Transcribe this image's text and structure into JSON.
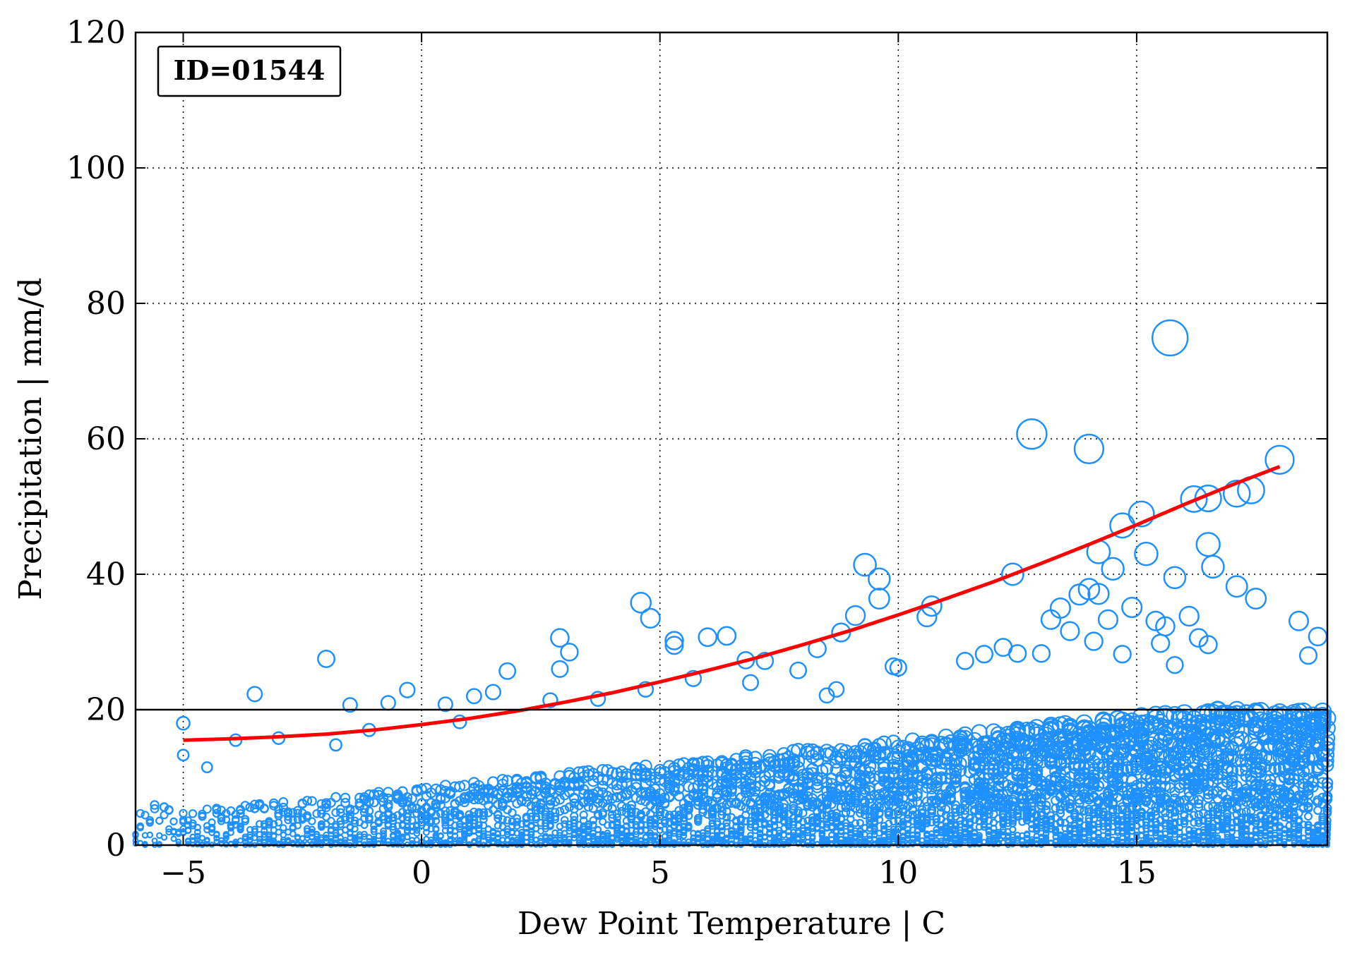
{
  "chart_data": {
    "type": "scatter",
    "xlabel": "Dew Point Temperature | C",
    "ylabel": "Precipitation | mm/d",
    "xlim": [
      -6,
      19
    ],
    "ylim": [
      0,
      120
    ],
    "xticks": [
      -5,
      0,
      5,
      10,
      15
    ],
    "xtick_labels": [
      "−5",
      "0",
      "5",
      "10",
      "15"
    ],
    "yticks": [
      0,
      20,
      40,
      60,
      80,
      100,
      120
    ],
    "ytick_labels": [
      "0",
      "20",
      "40",
      "60",
      "80",
      "100",
      "120"
    ],
    "grid": true,
    "reference_line_y": 20,
    "annotation": "ID=01544",
    "colors": {
      "points": "#1e90ff",
      "fit": "#ff0000",
      "reference": "#000000",
      "grid": "#000000"
    },
    "series": [
      {
        "kind": "scatter",
        "marker": "open-circle",
        "points": [
          [
            -5,
            18.0
          ],
          [
            -2,
            27.5
          ],
          [
            -3.5,
            22.3
          ],
          [
            -1.5,
            20.7
          ],
          [
            -0.3,
            22.9
          ],
          [
            0.5,
            20.8
          ],
          [
            -0.7,
            21.0
          ],
          [
            1.1,
            22.0
          ],
          [
            1.5,
            22.6
          ],
          [
            1.8,
            25.7
          ],
          [
            2.9,
            30.6
          ],
          [
            2.9,
            26.0
          ],
          [
            3.1,
            28.5
          ],
          [
            2.7,
            21.4
          ],
          [
            4.6,
            35.8
          ],
          [
            4.8,
            33.5
          ],
          [
            5.3,
            30.2
          ],
          [
            5.3,
            29.5
          ],
          [
            6,
            30.7
          ],
          [
            6.4,
            30.9
          ],
          [
            6.8,
            27.3
          ],
          [
            7.2,
            27.2
          ],
          [
            7.9,
            25.8
          ],
          [
            8.3,
            29.0
          ],
          [
            8.8,
            31.4
          ],
          [
            9.3,
            41.4
          ],
          [
            9.6,
            39.3
          ],
          [
            9.6,
            36.4
          ],
          [
            9.1,
            33.9
          ],
          [
            10.6,
            33.7
          ],
          [
            10.7,
            35.3
          ],
          [
            11.4,
            27.2
          ],
          [
            12.4,
            40.0
          ],
          [
            12.8,
            60.7
          ],
          [
            13.0,
            28.3
          ],
          [
            13.2,
            33.3
          ],
          [
            13.4,
            35.0
          ],
          [
            13.6,
            31.6
          ],
          [
            13.8,
            37.0
          ],
          [
            14.0,
            58.5
          ],
          [
            14.0,
            37.8
          ],
          [
            14.2,
            43.3
          ],
          [
            14.2,
            37.1
          ],
          [
            14.4,
            33.3
          ],
          [
            14.5,
            40.8
          ],
          [
            14.7,
            47.2
          ],
          [
            14.9,
            35.1
          ],
          [
            15.1,
            48.9
          ],
          [
            15.2,
            43.0
          ],
          [
            15.7,
            74.9
          ],
          [
            15.4,
            33.1
          ],
          [
            15.6,
            32.3
          ],
          [
            15.8,
            39.5
          ],
          [
            16.1,
            33.8
          ],
          [
            16.2,
            51.1
          ],
          [
            16.5,
            51.2
          ],
          [
            16.5,
            44.4
          ],
          [
            16.6,
            41.1
          ],
          [
            17.1,
            51.9
          ],
          [
            17.4,
            52.4
          ],
          [
            17.1,
            38.2
          ],
          [
            17.5,
            36.4
          ],
          [
            18.0,
            56.9
          ],
          [
            18.4,
            33.1
          ],
          [
            18.8,
            30.8
          ],
          [
            18.6,
            28.0
          ],
          [
            16.3,
            30.6
          ],
          [
            16.5,
            29.6
          ],
          [
            15.5,
            29.8
          ],
          [
            15.8,
            26.6
          ],
          [
            14.1,
            30.1
          ],
          [
            14.7,
            28.2
          ],
          [
            12.2,
            29.2
          ],
          [
            12.5,
            28.3
          ],
          [
            11.8,
            28.2
          ],
          [
            9.9,
            26.4
          ],
          [
            10.0,
            26.2
          ],
          [
            8.5,
            22.1
          ],
          [
            8.7,
            23.0
          ],
          [
            6.9,
            24.0
          ],
          [
            5.7,
            24.6
          ],
          [
            4.7,
            23.0
          ],
          [
            3.7,
            21.6
          ],
          [
            0.8,
            18.2
          ],
          [
            -1.8,
            14.8
          ],
          [
            -1.1,
            17.0
          ],
          [
            -3.9,
            15.5
          ],
          [
            -3.0,
            15.8
          ],
          [
            -4.5,
            11.5
          ],
          [
            -5.0,
            13.3
          ]
        ]
      },
      {
        "kind": "line",
        "x": [
          -5,
          -4,
          -3,
          -2,
          -1,
          0,
          1,
          2,
          3,
          4,
          5,
          6,
          7,
          8,
          9,
          10,
          11,
          12,
          13,
          14,
          15,
          16,
          17,
          18
        ],
        "values": [
          15.5,
          15.7,
          16.0,
          16.4,
          17.0,
          17.8,
          18.7,
          19.8,
          21.1,
          22.5,
          24.1,
          25.8,
          27.6,
          29.6,
          31.7,
          34.0,
          36.4,
          38.9,
          41.6,
          44.4,
          47.3,
          50.3,
          53.2,
          55.9
        ]
      }
    ]
  }
}
